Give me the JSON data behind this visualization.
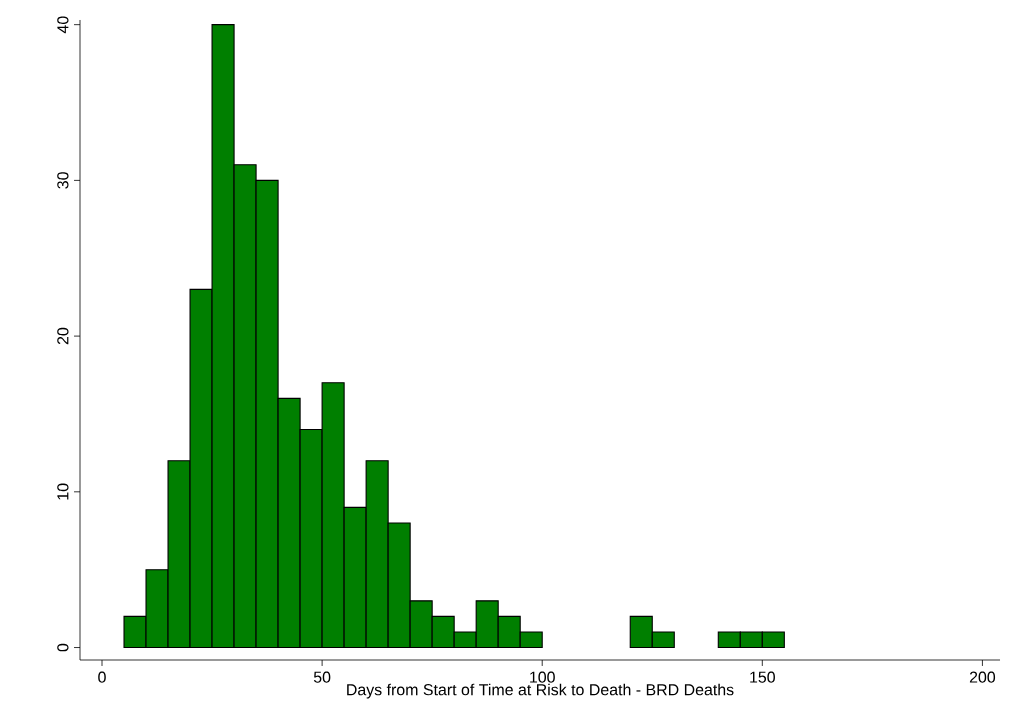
{
  "chart_data": {
    "type": "histogram",
    "xlabel": "Days from Start of Time at Risk to Death - BRD Deaths",
    "bins": [
      5,
      10,
      15,
      20,
      25,
      30,
      35,
      40,
      45,
      50,
      55,
      60,
      65,
      70,
      75,
      80,
      85,
      90,
      95,
      100,
      105,
      110,
      115,
      120,
      125,
      130,
      135,
      140,
      145,
      150,
      155
    ],
    "values": [
      2,
      5,
      12,
      23,
      40,
      31,
      30,
      16,
      14,
      17,
      9,
      12,
      8,
      3,
      2,
      1,
      3,
      2,
      1,
      0,
      0,
      0,
      0,
      2,
      1,
      0,
      0,
      1,
      1,
      1
    ],
    "color": "#007f00",
    "xlim": [
      -5,
      204
    ],
    "ylim": [
      -0.8,
      40.3
    ],
    "xticks": [
      0,
      50,
      100,
      150,
      200
    ],
    "yticks": [
      0,
      10,
      20,
      30,
      40
    ],
    "grid": false
  }
}
